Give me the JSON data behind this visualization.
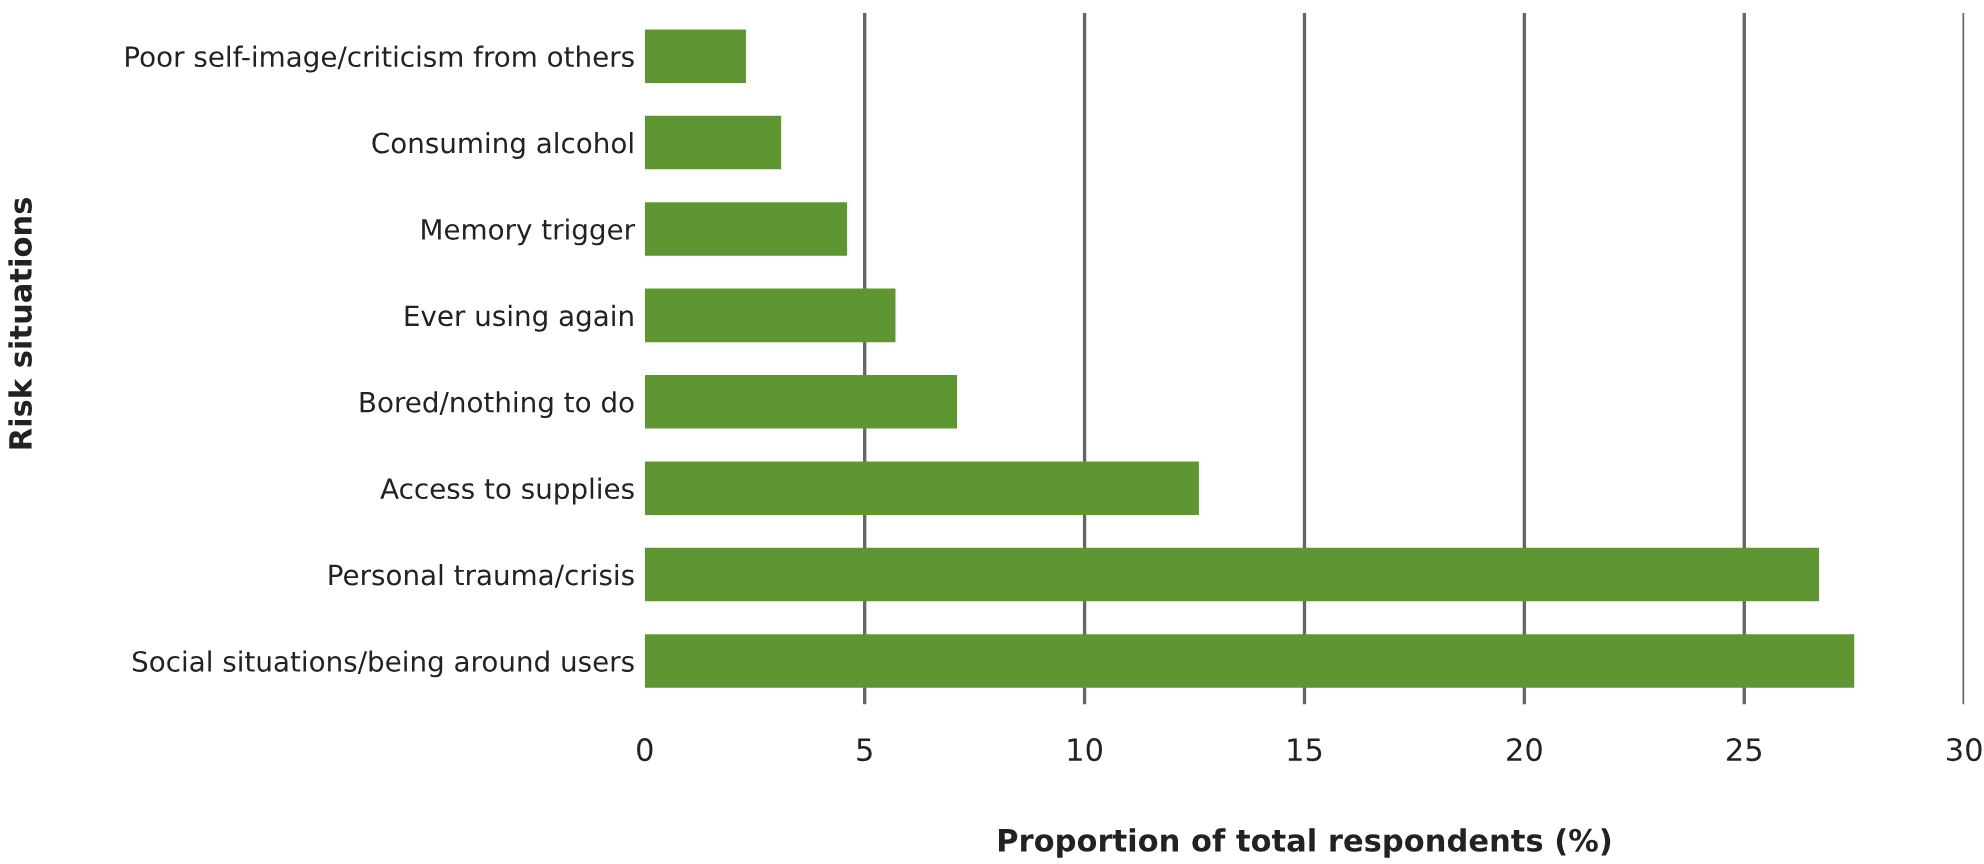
{
  "chart_data": {
    "type": "bar",
    "orientation": "horizontal",
    "xlabel": "Proportion of total respondents (%)",
    "ylabel": "Risk situations",
    "categories": [
      "Poor self-image/criticism from others",
      "Consuming alcohol",
      "Memory trigger",
      "Ever using again",
      "Bored/nothing to do",
      "Access to supplies",
      "Personal trauma/crisis",
      "Social situations/being around users"
    ],
    "values": [
      2.3,
      3.1,
      4.6,
      5.7,
      7.1,
      12.6,
      26.7,
      27.5
    ],
    "color": "#5e9732",
    "xlim": [
      0,
      30
    ],
    "xticks": [
      0,
      5,
      10,
      15,
      20,
      25,
      30
    ],
    "grid": "x"
  }
}
